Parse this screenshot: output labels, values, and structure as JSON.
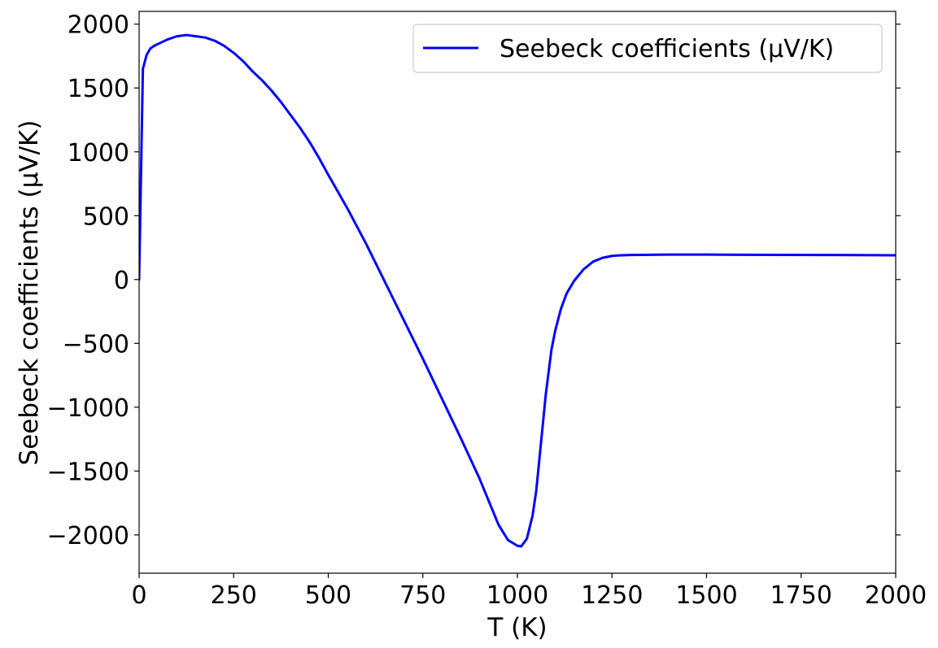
{
  "chart_data": {
    "type": "line",
    "title": "",
    "xlabel": "T (K)",
    "ylabel": "Seebeck coefficients (μV/K)",
    "xlim": [
      0,
      2000
    ],
    "ylim": [
      -2300,
      2100
    ],
    "grid": false,
    "legend_position": "top-right",
    "x_ticks": [
      0,
      250,
      500,
      750,
      1000,
      1250,
      1500,
      1750,
      2000
    ],
    "x_tick_labels": [
      "0",
      "250",
      "500",
      "750",
      "1000",
      "1250",
      "1500",
      "1750",
      "2000"
    ],
    "y_ticks": [
      2000,
      1500,
      1000,
      500,
      0,
      -500,
      -1000,
      -1500,
      -2000
    ],
    "y_tick_labels": [
      "2000",
      "1500",
      "1000",
      "500",
      "0",
      "−500",
      "−1000",
      "−1500",
      "−2000"
    ],
    "series": [
      {
        "name": "Seebeck coefficients (μV/K)",
        "color": "#0000ff",
        "x": [
          0,
          10,
          20,
          30,
          40,
          50,
          75,
          100,
          125,
          150,
          175,
          200,
          225,
          250,
          275,
          300,
          325,
          350,
          375,
          400,
          425,
          450,
          475,
          500,
          525,
          550,
          575,
          600,
          625,
          650,
          675,
          700,
          725,
          750,
          775,
          800,
          825,
          850,
          875,
          900,
          925,
          950,
          975,
          1000,
          1010,
          1025,
          1040,
          1050,
          1060,
          1075,
          1090,
          1100,
          1115,
          1130,
          1150,
          1175,
          1200,
          1225,
          1250,
          1275,
          1300,
          1350,
          1400,
          1500,
          1600,
          1700,
          1800,
          1900,
          2000
        ],
        "y": [
          0,
          1650,
          1760,
          1810,
          1830,
          1845,
          1880,
          1905,
          1915,
          1905,
          1895,
          1870,
          1830,
          1775,
          1710,
          1630,
          1560,
          1480,
          1390,
          1290,
          1190,
          1080,
          955,
          820,
          690,
          560,
          420,
          280,
          130,
          -20,
          -170,
          -320,
          -470,
          -620,
          -775,
          -930,
          -1085,
          -1240,
          -1400,
          -1560,
          -1740,
          -1920,
          -2040,
          -2085,
          -2090,
          -2030,
          -1850,
          -1650,
          -1350,
          -900,
          -550,
          -400,
          -230,
          -110,
          -10,
          80,
          140,
          170,
          185,
          190,
          192,
          194,
          195,
          195,
          194,
          193,
          192,
          191,
          190
        ]
      }
    ]
  }
}
